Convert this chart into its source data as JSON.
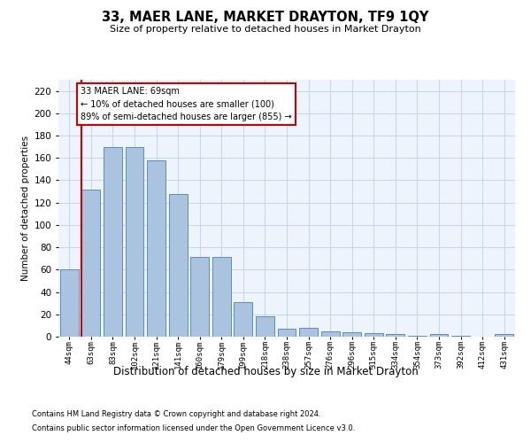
{
  "title": "33, MAER LANE, MARKET DRAYTON, TF9 1QY",
  "subtitle": "Size of property relative to detached houses in Market Drayton",
  "xlabel": "Distribution of detached houses by size in Market Drayton",
  "ylabel": "Number of detached properties",
  "categories": [
    "44sqm",
    "63sqm",
    "83sqm",
    "102sqm",
    "121sqm",
    "141sqm",
    "160sqm",
    "179sqm",
    "199sqm",
    "218sqm",
    "238sqm",
    "257sqm",
    "276sqm",
    "296sqm",
    "315sqm",
    "334sqm",
    "354sqm",
    "373sqm",
    "392sqm",
    "412sqm",
    "431sqm"
  ],
  "values": [
    60,
    132,
    170,
    170,
    158,
    128,
    71,
    71,
    31,
    18,
    7,
    8,
    5,
    4,
    3,
    2,
    1,
    2,
    1,
    0,
    2
  ],
  "bar_color": "#aac4e0",
  "bar_edge_color": "#5b8cc8",
  "vline_color": "#cc0000",
  "annotation_text": "33 MAER LANE: 69sqm\n← 10% of detached houses are smaller (100)\n89% of semi-detached houses are larger (855) →",
  "annotation_box_edge_color": "#cc0000",
  "ylim_max": 230,
  "yticks": [
    0,
    20,
    40,
    60,
    80,
    100,
    120,
    140,
    160,
    180,
    200,
    220
  ],
  "grid_color": "#c8d8e8",
  "plot_bg_color": "#eef4fb",
  "footnote1": "Contains HM Land Registry data © Crown copyright and database right 2024.",
  "footnote2": "Contains public sector information licensed under the Open Government Licence v3.0."
}
